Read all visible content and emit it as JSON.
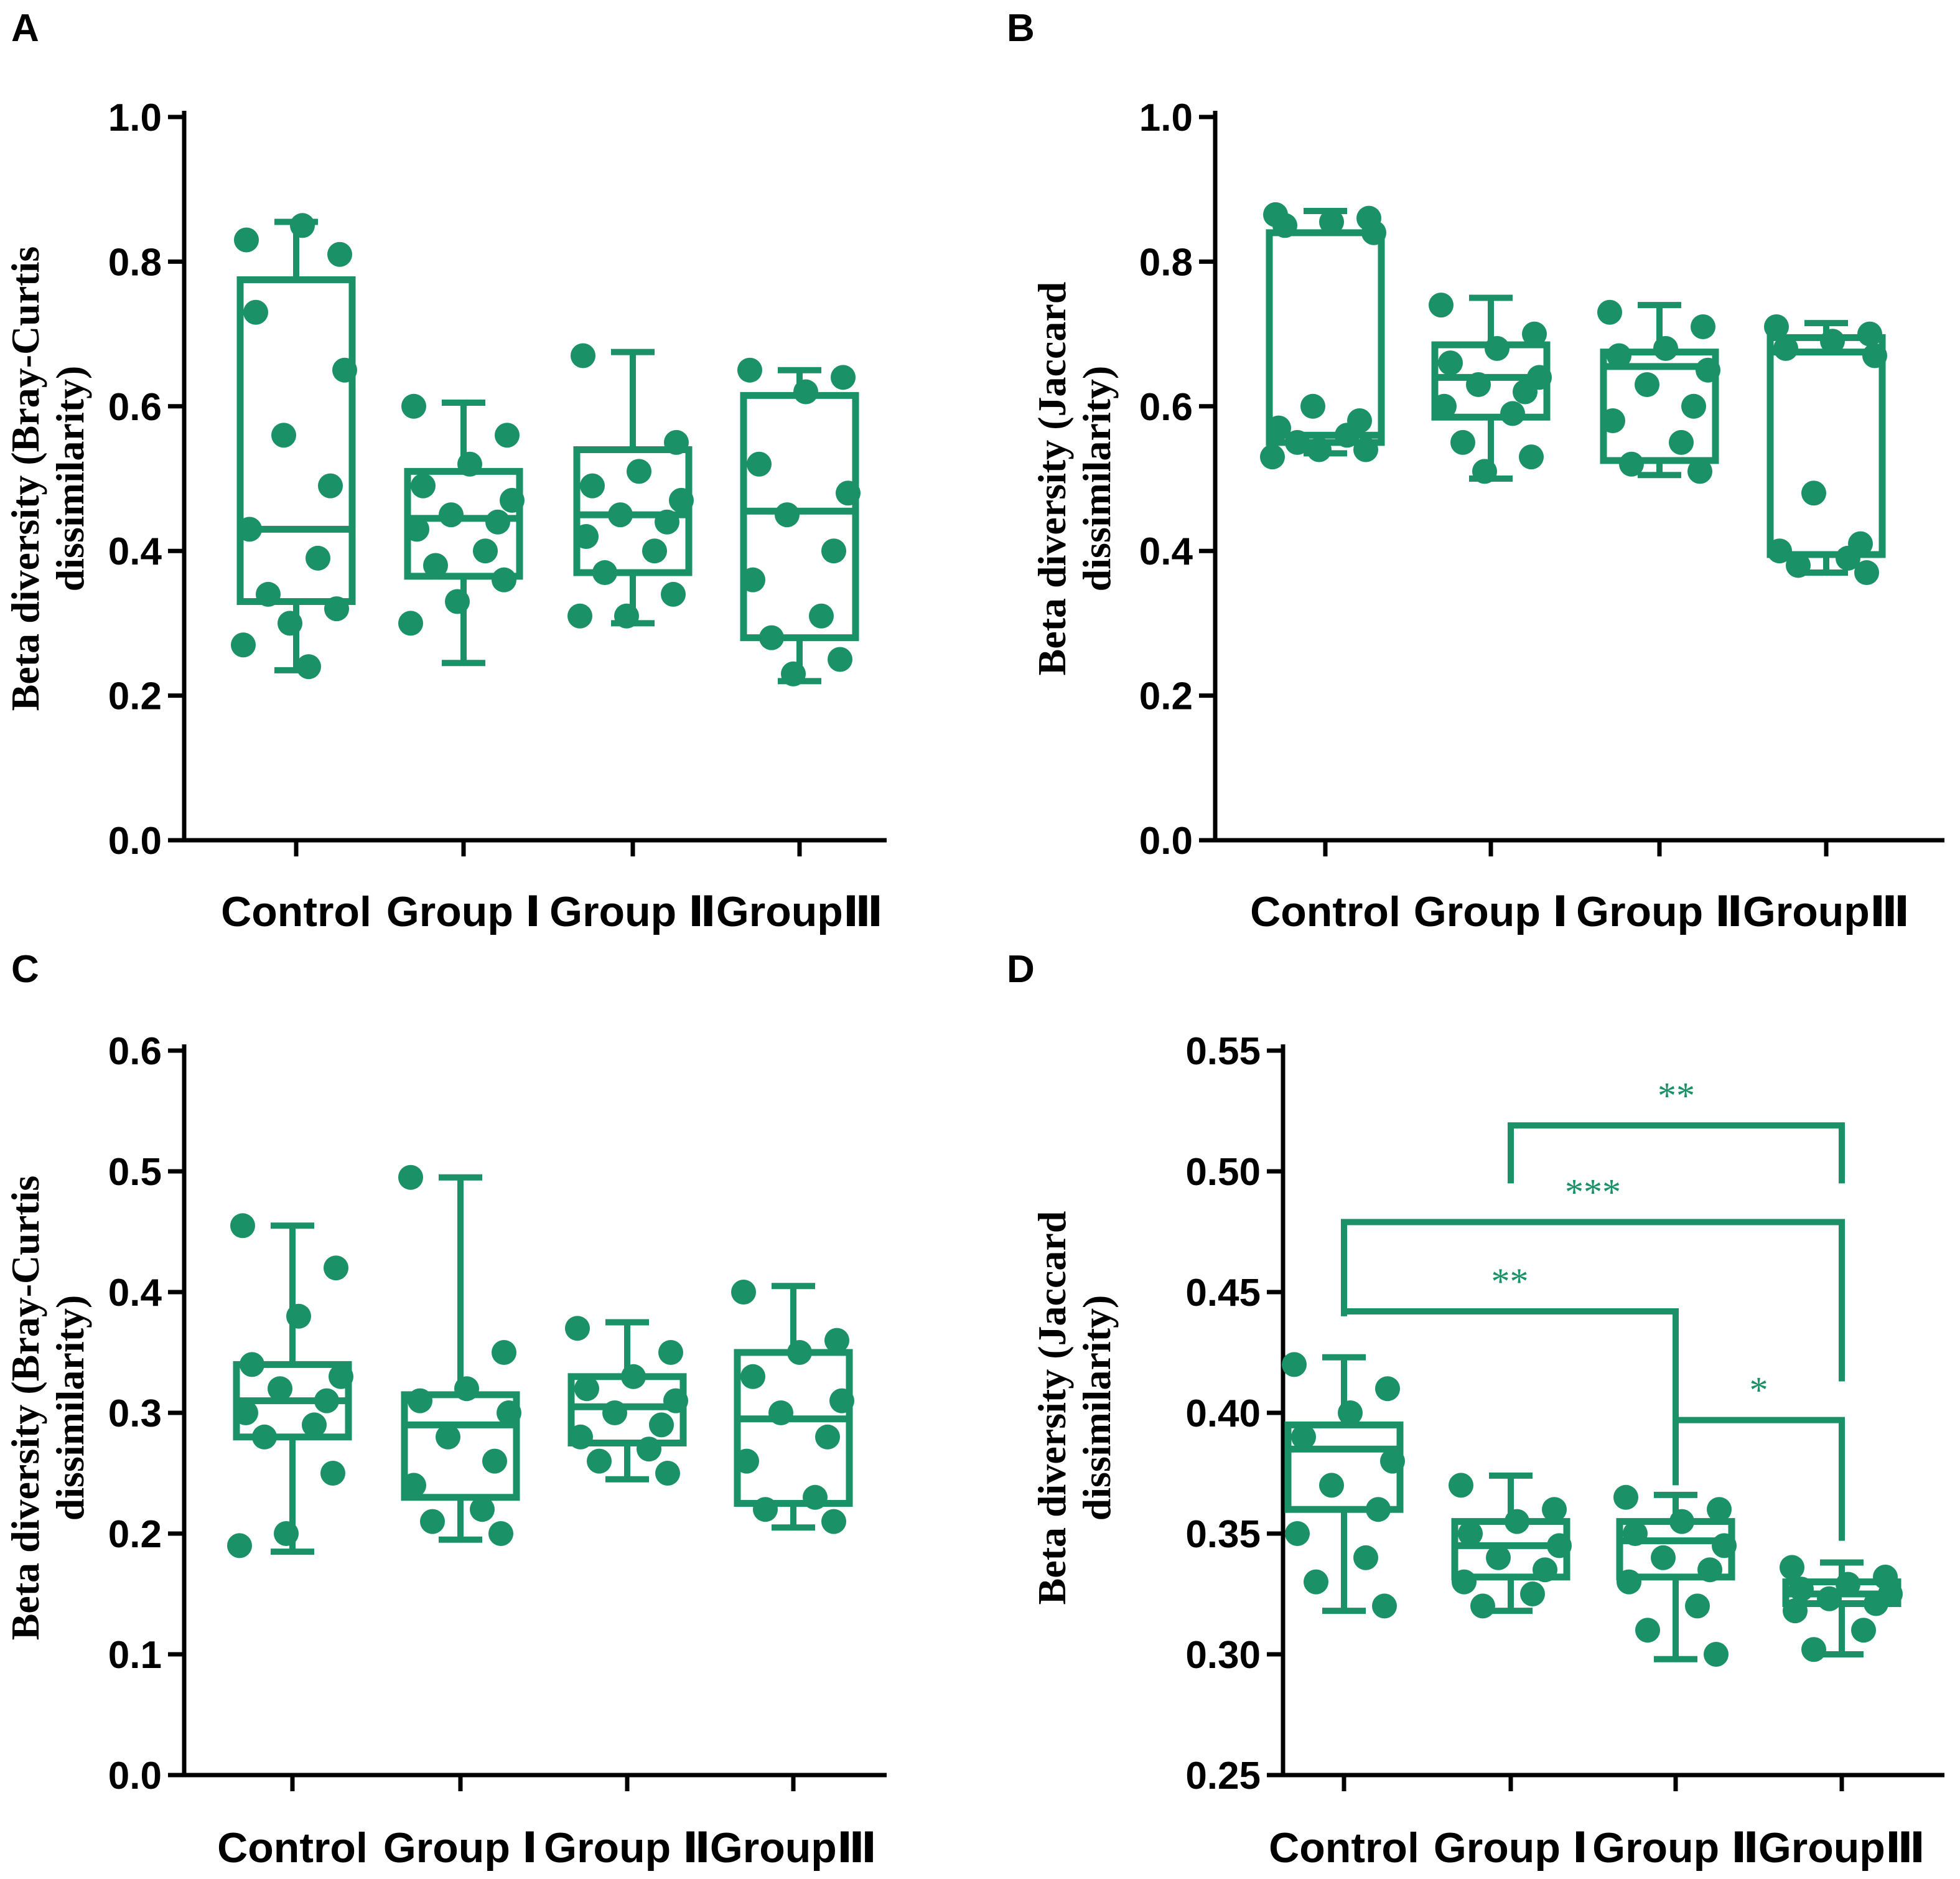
{
  "colors": {
    "accent": "#1a9166",
    "axis": "#000000",
    "background": "#ffffff"
  },
  "chart_data": [
    {
      "panel": "A",
      "type": "box",
      "ylabel": [
        "Beta diversity (Bray-Curtis",
        "dissimilarity)"
      ],
      "categories": [
        "Control",
        "Group Ⅰ",
        "Group Ⅱ",
        "GroupⅢ"
      ],
      "ylim": [
        0,
        1.0
      ],
      "yticks": [
        0.0,
        0.2,
        0.4,
        0.6,
        0.8,
        1.0
      ],
      "ytick_labels": [
        "0.0",
        "0.2",
        "0.4",
        "0.6",
        "0.8",
        "1.0"
      ],
      "boxes": [
        {
          "min": 0.235,
          "q1": 0.33,
          "median": 0.43,
          "q3": 0.775,
          "max": 0.855
        },
        {
          "min": 0.245,
          "q1": 0.365,
          "median": 0.445,
          "q3": 0.51,
          "max": 0.605
        },
        {
          "min": 0.3,
          "q1": 0.37,
          "median": 0.45,
          "q3": 0.54,
          "max": 0.675
        },
        {
          "min": 0.22,
          "q1": 0.28,
          "median": 0.455,
          "q3": 0.615,
          "max": 0.65
        }
      ],
      "points": [
        [
          0.83,
          0.81,
          0.85,
          0.73,
          0.65,
          0.56,
          0.49,
          0.43,
          0.39,
          0.34,
          0.32,
          0.3,
          0.27,
          0.24
        ],
        [
          0.6,
          0.56,
          0.52,
          0.49,
          0.47,
          0.45,
          0.44,
          0.43,
          0.4,
          0.38,
          0.36,
          0.33,
          0.3
        ],
        [
          0.67,
          0.55,
          0.51,
          0.49,
          0.47,
          0.45,
          0.44,
          0.42,
          0.4,
          0.37,
          0.34,
          0.31,
          0.31
        ],
        [
          0.65,
          0.64,
          0.62,
          0.52,
          0.48,
          0.45,
          0.4,
          0.36,
          0.31,
          0.28,
          0.25,
          0.23
        ]
      ]
    },
    {
      "panel": "B",
      "type": "box",
      "ylabel": [
        "Beta diversity (Jaccard",
        "dissimilarity)"
      ],
      "categories": [
        "Control",
        "Group Ⅰ",
        "Group Ⅱ",
        "GroupⅢ"
      ],
      "ylim": [
        0,
        1.0
      ],
      "yticks": [
        0.0,
        0.2,
        0.4,
        0.6,
        0.8,
        1.0
      ],
      "ytick_labels": [
        "0.0",
        "0.2",
        "0.4",
        "0.6",
        "0.8",
        "1.0"
      ],
      "boxes": [
        {
          "min": 0.535,
          "q1": 0.55,
          "median": 0.56,
          "q3": 0.84,
          "max": 0.87
        },
        {
          "min": 0.5,
          "q1": 0.585,
          "median": 0.64,
          "q3": 0.685,
          "max": 0.75
        },
        {
          "min": 0.505,
          "q1": 0.525,
          "median": 0.655,
          "q3": 0.675,
          "max": 0.74
        },
        {
          "min": 0.37,
          "q1": 0.395,
          "median": 0.675,
          "q3": 0.695,
          "max": 0.715
        }
      ],
      "points": [
        [
          0.865,
          0.86,
          0.855,
          0.85,
          0.84,
          0.6,
          0.58,
          0.57,
          0.56,
          0.55,
          0.54,
          0.54,
          0.53
        ],
        [
          0.74,
          0.7,
          0.68,
          0.66,
          0.64,
          0.63,
          0.62,
          0.6,
          0.59,
          0.55,
          0.53,
          0.51
        ],
        [
          0.73,
          0.71,
          0.68,
          0.67,
          0.65,
          0.63,
          0.6,
          0.58,
          0.55,
          0.52,
          0.51
        ],
        [
          0.71,
          0.7,
          0.69,
          0.68,
          0.67,
          0.48,
          0.41,
          0.4,
          0.39,
          0.38,
          0.37
        ]
      ]
    },
    {
      "panel": "C",
      "type": "box",
      "ylabel": [
        "Beta diversity (Bray-Curtis",
        "dissimilarity)"
      ],
      "categories": [
        "Control",
        "Group Ⅰ",
        "Group Ⅱ",
        "GroupⅢ"
      ],
      "ylim": [
        0,
        0.6
      ],
      "yticks": [
        0.0,
        0.1,
        0.2,
        0.3,
        0.4,
        0.5,
        0.6
      ],
      "ytick_labels": [
        "0.0",
        "0.1",
        "0.2",
        "0.3",
        "0.4",
        "0.5",
        "0.6"
      ],
      "boxes": [
        {
          "min": 0.185,
          "q1": 0.28,
          "median": 0.31,
          "q3": 0.34,
          "max": 0.455
        },
        {
          "min": 0.195,
          "q1": 0.23,
          "median": 0.29,
          "q3": 0.315,
          "max": 0.495
        },
        {
          "min": 0.245,
          "q1": 0.275,
          "median": 0.305,
          "q3": 0.33,
          "max": 0.375
        },
        {
          "min": 0.205,
          "q1": 0.225,
          "median": 0.295,
          "q3": 0.35,
          "max": 0.405
        }
      ],
      "points": [
        [
          0.455,
          0.42,
          0.38,
          0.34,
          0.33,
          0.32,
          0.31,
          0.3,
          0.29,
          0.28,
          0.25,
          0.2,
          0.19
        ],
        [
          0.495,
          0.35,
          0.32,
          0.31,
          0.3,
          0.28,
          0.26,
          0.24,
          0.22,
          0.21,
          0.2
        ],
        [
          0.37,
          0.35,
          0.33,
          0.32,
          0.31,
          0.3,
          0.29,
          0.28,
          0.27,
          0.26,
          0.25
        ],
        [
          0.4,
          0.36,
          0.35,
          0.33,
          0.31,
          0.3,
          0.28,
          0.26,
          0.23,
          0.22,
          0.21
        ]
      ]
    },
    {
      "panel": "D",
      "type": "box",
      "ylabel": [
        "Beta diversity (Jaccard",
        "dissimilarity)"
      ],
      "categories": [
        "Control",
        "Group Ⅰ",
        "Group Ⅱ",
        "GroupⅢ"
      ],
      "ylim": [
        0.25,
        0.55
      ],
      "yticks": [
        0.25,
        0.3,
        0.35,
        0.4,
        0.45,
        0.5,
        0.55
      ],
      "ytick_labels": [
        "0.25",
        "0.30",
        "0.35",
        "0.40",
        "0.45",
        "0.50",
        "0.55"
      ],
      "boxes": [
        {
          "min": 0.318,
          "q1": 0.36,
          "median": 0.385,
          "q3": 0.395,
          "max": 0.423
        },
        {
          "min": 0.318,
          "q1": 0.332,
          "median": 0.345,
          "q3": 0.355,
          "max": 0.374
        },
        {
          "min": 0.298,
          "q1": 0.332,
          "median": 0.347,
          "q3": 0.355,
          "max": 0.366
        },
        {
          "min": 0.3,
          "q1": 0.321,
          "median": 0.325,
          "q3": 0.33,
          "max": 0.338
        }
      ],
      "points": [
        [
          0.42,
          0.41,
          0.4,
          0.39,
          0.38,
          0.37,
          0.36,
          0.35,
          0.34,
          0.33,
          0.32
        ],
        [
          0.37,
          0.36,
          0.355,
          0.35,
          0.345,
          0.34,
          0.335,
          0.33,
          0.325,
          0.32
        ],
        [
          0.365,
          0.36,
          0.355,
          0.35,
          0.345,
          0.34,
          0.335,
          0.33,
          0.32,
          0.31,
          0.3
        ],
        [
          0.336,
          0.332,
          0.329,
          0.327,
          0.325,
          0.323,
          0.321,
          0.318,
          0.31,
          0.302
        ]
      ],
      "significance": [
        {
          "from": 1,
          "to": 3,
          "label": "**",
          "level": 0.519,
          "left_drop": 0.495,
          "right_drop": 0.495
        },
        {
          "from": 0,
          "to": 3,
          "label": "***",
          "level": 0.479,
          "left_drop": 0.44,
          "right_drop": 0.413
        },
        {
          "from": 0,
          "to": 2,
          "label": "**",
          "level": 0.442,
          "left_drop": 0.44,
          "right_drop": 0.395
        },
        {
          "from": 2,
          "to": 3,
          "label": "*",
          "level": 0.397,
          "left_drop": 0.37,
          "right_drop": 0.347
        }
      ]
    }
  ]
}
